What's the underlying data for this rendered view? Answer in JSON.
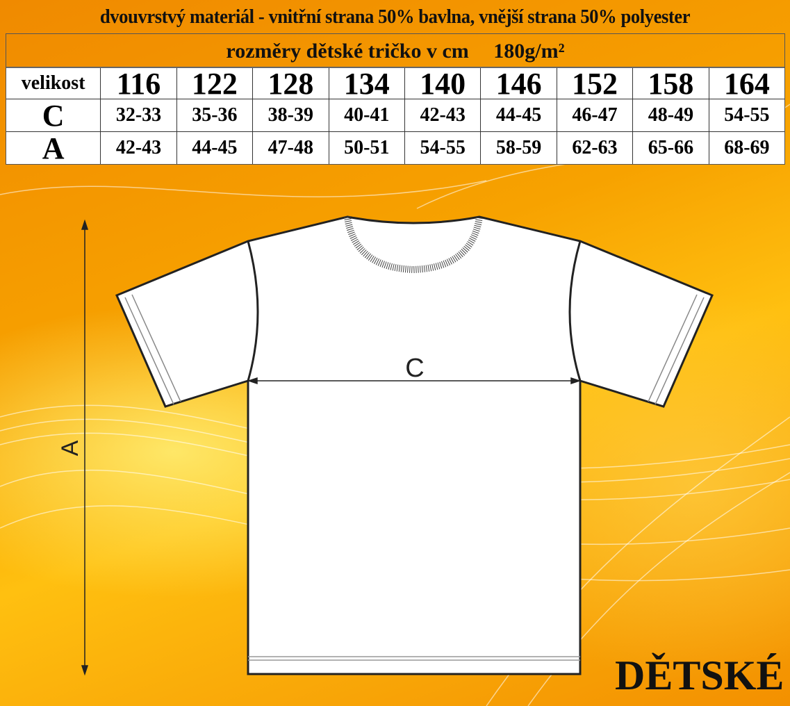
{
  "title": "dvouvrstvý materiál - vnitřní strana 50% bavlna, vnější strana 50% polyester",
  "subtitle": "rozměry dětské tričko v cm",
  "weight": "180g/m²",
  "table": {
    "header_label": "velikost",
    "sizes": [
      "116",
      "122",
      "128",
      "134",
      "140",
      "146",
      "152",
      "158",
      "164"
    ],
    "rows": [
      {
        "label": "C",
        "values": [
          "32-33",
          "35-36",
          "38-39",
          "40-41",
          "42-43",
          "44-45",
          "46-47",
          "48-49",
          "54-55"
        ]
      },
      {
        "label": "A",
        "values": [
          "42-43",
          "44-45",
          "47-48",
          "50-51",
          "54-55",
          "58-59",
          "62-63",
          "65-66",
          "68-69"
        ]
      }
    ]
  },
  "diagram": {
    "width_label": "C",
    "length_label": "A"
  },
  "brand": "DĚTSKÉ",
  "colors": {
    "background": "#f39000",
    "accent": "#ffc010"
  }
}
